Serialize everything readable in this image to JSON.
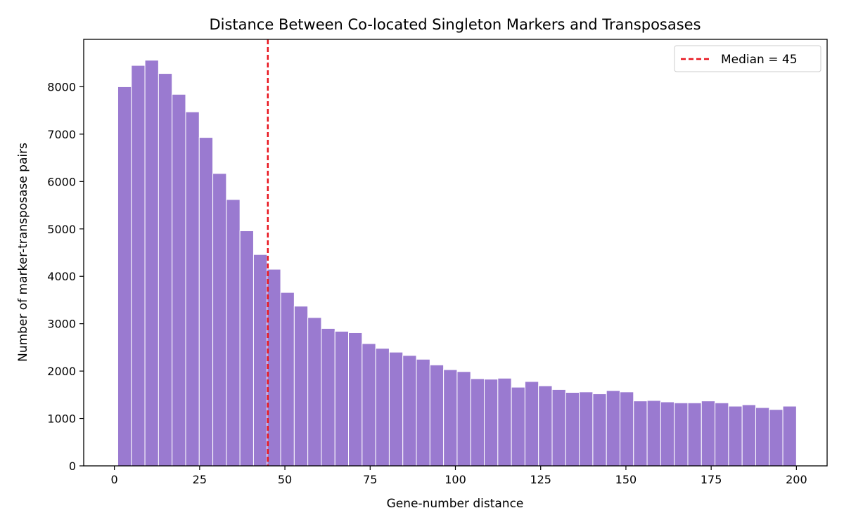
{
  "chart_data": {
    "type": "bar",
    "title": "Distance Between Co-located Singleton Markers and Transposases",
    "xlabel": "Gene-number distance",
    "ylabel": "Number of marker-transposase pairs",
    "xlim": [
      -9,
      209
    ],
    "ylim": [
      0,
      9000
    ],
    "xticks": [
      0,
      25,
      50,
      75,
      100,
      125,
      150,
      175,
      200
    ],
    "yticks": [
      0,
      1000,
      2000,
      3000,
      4000,
      5000,
      6000,
      7000,
      8000
    ],
    "bin_edges_start": 1,
    "bin_width": 3.98,
    "bar_color": "#9a7ad0",
    "values": [
      8000,
      8450,
      8560,
      8280,
      7840,
      7470,
      6930,
      6170,
      5620,
      4960,
      4460,
      4150,
      3660,
      3370,
      3130,
      2900,
      2840,
      2810,
      2580,
      2480,
      2400,
      2330,
      2250,
      2130,
      2030,
      1990,
      1840,
      1830,
      1850,
      1660,
      1780,
      1690,
      1610,
      1550,
      1560,
      1520,
      1590,
      1560,
      1370,
      1380,
      1350,
      1330,
      1330,
      1370,
      1330,
      1260,
      1290,
      1230,
      1190,
      1260
    ],
    "median": {
      "value": 45,
      "label": "Median = 45",
      "color": "#e8141d"
    },
    "legend_position": "top-right",
    "grid": false
  }
}
